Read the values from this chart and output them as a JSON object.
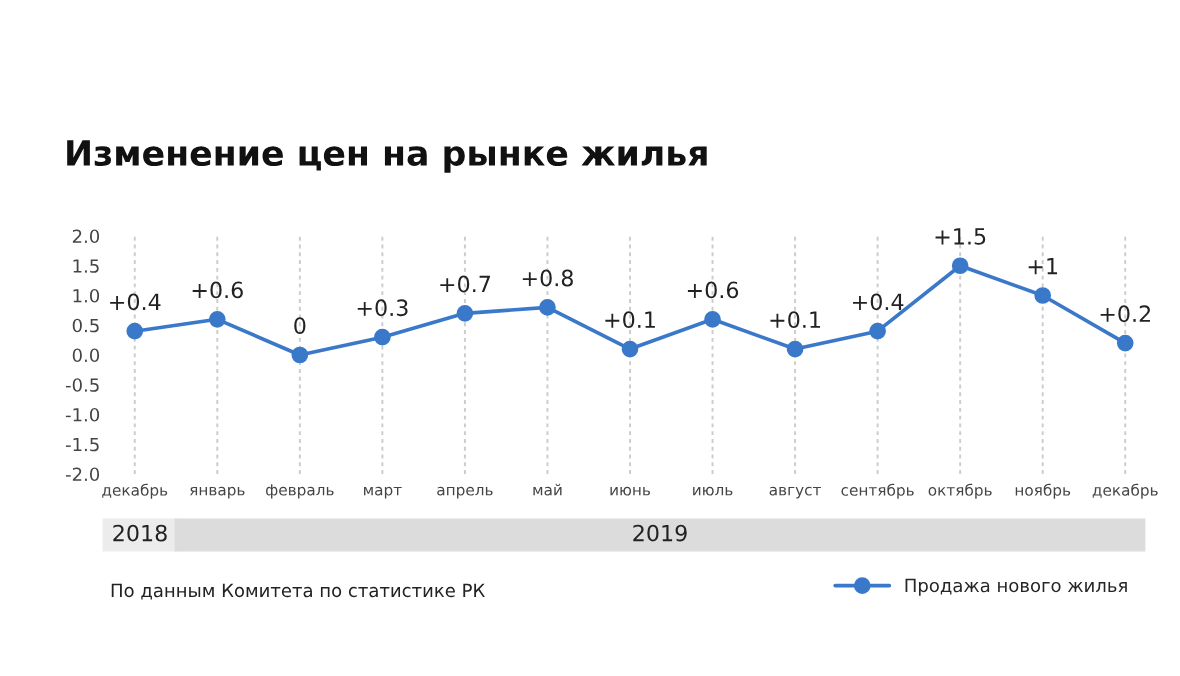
{
  "chart_data": {
    "type": "line",
    "title": "Изменение цен на рынке жилья",
    "categories": [
      "декабрь",
      "январь",
      "февраль",
      "март",
      "апрель",
      "май",
      "июнь",
      "июль",
      "август",
      "сентябрь",
      "октябрь",
      "ноябрь",
      "декабрь"
    ],
    "series": [
      {
        "name": "Продажа нового жилья",
        "color": "#3a78c9",
        "values": [
          0.4,
          0.6,
          0,
          0.3,
          0.7,
          0.8,
          0.1,
          0.6,
          0.1,
          0.4,
          1.5,
          1,
          0.2
        ],
        "value_labels": [
          "+0.4",
          "+0.6",
          "0",
          "+0.3",
          "+0.7",
          "+0.8",
          "+0.1",
          "+0.6",
          "+0.1",
          "+0.4",
          "+1.5",
          "+1",
          "+0.2"
        ]
      }
    ],
    "ylim": [
      -2.0,
      2.0
    ],
    "yticks": [
      {
        "value": 2.0,
        "label": "2.0"
      },
      {
        "value": 1.5,
        "label": "1.5"
      },
      {
        "value": 1.0,
        "label": "1.0"
      },
      {
        "value": 0.5,
        "label": "0.5"
      },
      {
        "value": 0.0,
        "label": "0.0"
      },
      {
        "value": -0.5,
        "label": "-0.5"
      },
      {
        "value": -1.0,
        "label": "-1.0"
      },
      {
        "value": -1.5,
        "label": "-1.5"
      },
      {
        "value": -2.0,
        "label": "-2.0"
      }
    ],
    "grid": "x",
    "legend": "bottom right",
    "marker": "circle",
    "line_style": "solid",
    "annotations": [
      "2018",
      "2019",
      "По данным Комитета по статистике РК"
    ]
  }
}
